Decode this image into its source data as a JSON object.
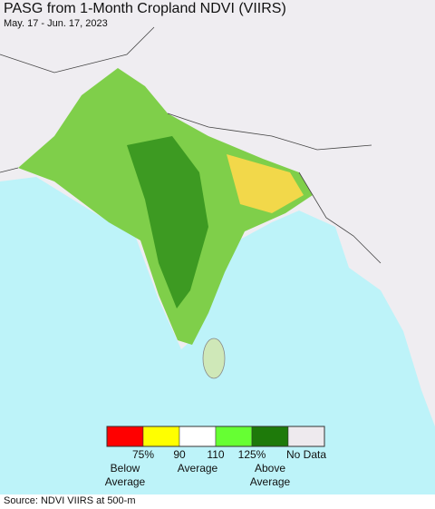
{
  "header": {
    "title": "PASG from 1-Month Cropland NDVI (VIIRS)",
    "subtitle": "May. 17 - Jun. 17, 2023"
  },
  "legend": {
    "swatches": [
      {
        "color": "#ff0000"
      },
      {
        "color": "#ffff00"
      },
      {
        "color": "#ffffff"
      },
      {
        "color": "#66ff33"
      },
      {
        "color": "#1e7a0a"
      },
      {
        "color": "#eeeaee"
      }
    ],
    "tick_labels": [
      "75%",
      "90",
      "110",
      "125%"
    ],
    "no_data_label": "No Data",
    "group_labels": [
      "Below Average",
      "Average",
      "Above Average"
    ]
  },
  "source": "Source: NDVI VIIRS at 500-m"
}
